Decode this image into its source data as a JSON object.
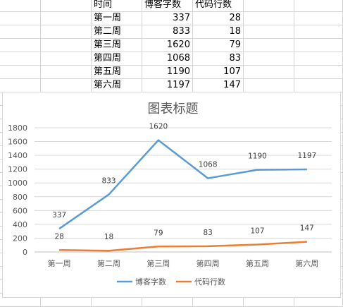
{
  "table": {
    "headers": [
      "时间",
      "博客字数",
      "代码行数"
    ],
    "rows": [
      [
        "第一周",
        "337",
        "28"
      ],
      [
        "第二周",
        "833",
        "18"
      ],
      [
        "第三周",
        "1620",
        "79"
      ],
      [
        "第四周",
        "1068",
        "83"
      ],
      [
        "第五周",
        "1190",
        "107"
      ],
      [
        "第六周",
        "1197",
        "147"
      ]
    ]
  },
  "chart_data": {
    "type": "line",
    "title": "图表标题",
    "categories": [
      "第一周",
      "第二周",
      "第三周",
      "第四周",
      "第五周",
      "第六周"
    ],
    "series": [
      {
        "name": "博客字数",
        "values": [
          337,
          833,
          1620,
          1068,
          1190,
          1197
        ],
        "color": "#5b9bd5"
      },
      {
        "name": "代码行数",
        "values": [
          28,
          18,
          79,
          83,
          107,
          147
        ],
        "color": "#ed7d31"
      }
    ],
    "ylim": [
      0,
      1800
    ],
    "yticks": [
      0,
      200,
      400,
      600,
      800,
      1000,
      1200,
      1400,
      1600,
      1800
    ],
    "grid": true,
    "legend_position": "bottom",
    "data_labels": "above"
  }
}
